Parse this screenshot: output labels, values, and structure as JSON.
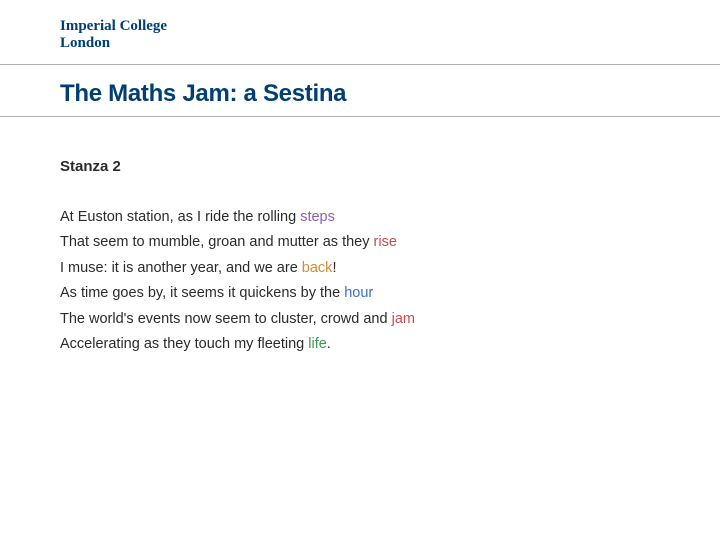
{
  "logo": {
    "line1": "Imperial College",
    "line2": "London"
  },
  "title": {
    "text": "The Maths Jam: a Sestina",
    "color": "#003e74"
  },
  "stanza": {
    "heading": "Stanza 2"
  },
  "lines": [
    {
      "pre": "At Euston station, as I ride the rolling ",
      "kw": "steps",
      "post": ""
    },
    {
      "pre": "That  seem to mumble, groan and mutter as they ",
      "kw": "rise",
      "post": ""
    },
    {
      "pre": "I muse: it is another year, and we are ",
      "kw": "back",
      "post": "!"
    },
    {
      "pre": "As time goes by, it seems it quickens by the ",
      "kw": "hour",
      "post": ""
    },
    {
      "pre": "The world's events now seem to cluster, crowd and ",
      "kw": "jam",
      "post": ""
    },
    {
      "pre": "Accelerating as they touch my fleeting ",
      "kw": "life",
      "post": "."
    }
  ],
  "kw_colors": {
    "steps": "#8b5fb0",
    "rise": "#c94c4c",
    "back": "#d88a2e",
    "hour": "#3a75c4",
    "jam": "#c94c4c",
    "life": "#3a9b52"
  }
}
